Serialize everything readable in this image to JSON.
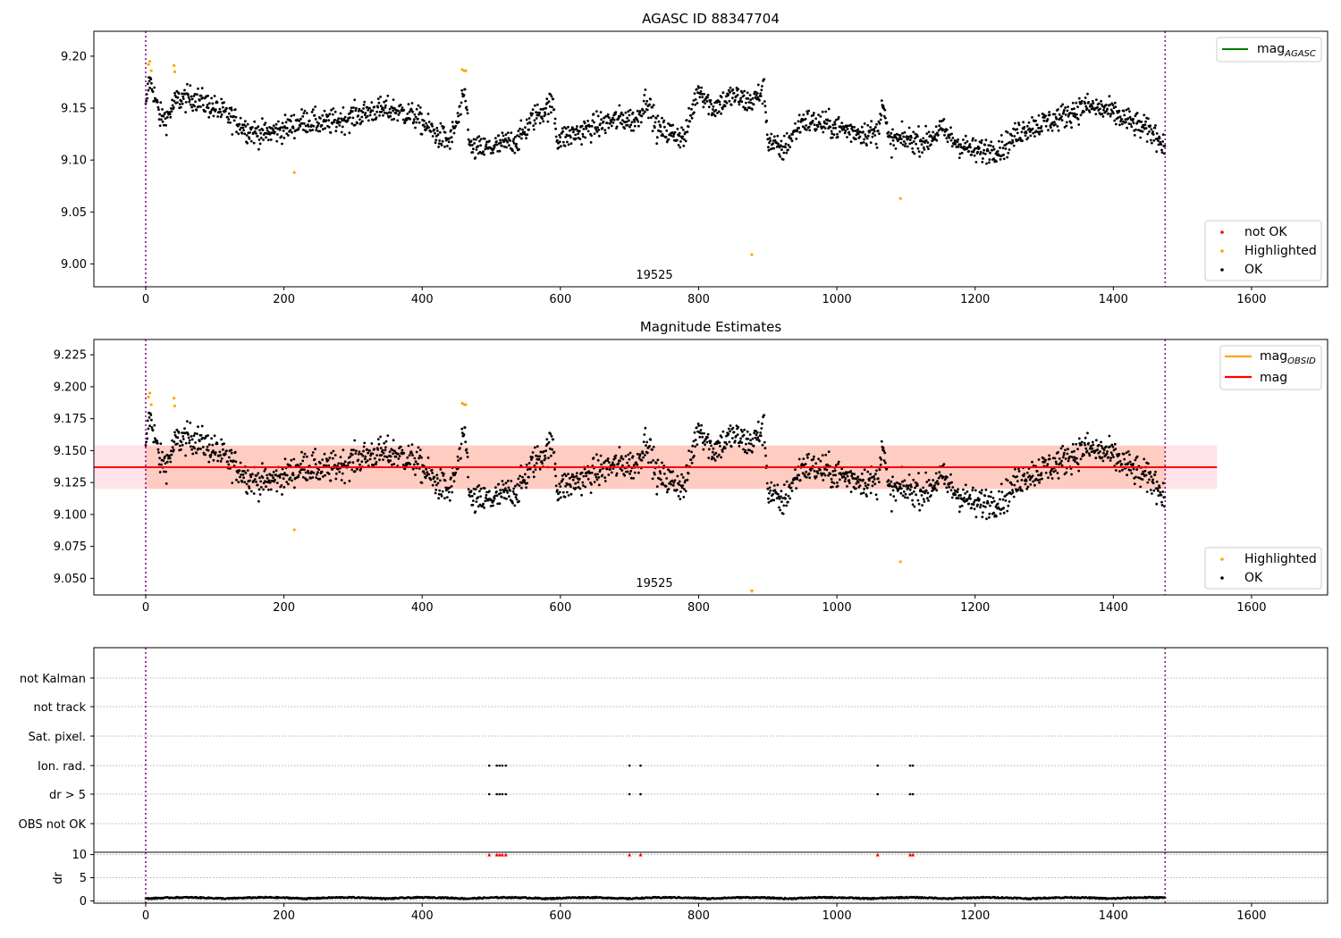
{
  "chart_data": [
    {
      "type": "scatter",
      "title": "AGASC ID 88347704",
      "xlim": [
        -75,
        1710
      ],
      "ylim": [
        8.978,
        9.224
      ],
      "xticks": [
        0,
        200,
        400,
        600,
        800,
        1000,
        1200,
        1400,
        1600
      ],
      "yticks": [
        9.0,
        9.05,
        9.1,
        9.15,
        9.2
      ],
      "ytick_labels": [
        "9.00",
        "9.05",
        "9.10",
        "9.15",
        "9.20"
      ],
      "vlines": [
        0,
        1475
      ],
      "obsid_label": "19525",
      "obsid_x": 732,
      "legend_lines": [
        {
          "label": "mag",
          "sub": "AGASC",
          "color": "#008000"
        }
      ],
      "legend_points": [
        {
          "label": "not OK",
          "color": "#ff0000"
        },
        {
          "label": "Highlighted",
          "color": "#ffa500"
        },
        {
          "label": "OK",
          "color": "#000000"
        }
      ],
      "highlighted": [
        [
          4,
          9.192
        ],
        [
          6,
          9.195
        ],
        [
          8,
          9.186
        ],
        [
          41,
          9.191
        ],
        [
          42,
          9.185
        ],
        [
          215,
          9.088
        ],
        [
          458,
          9.187
        ],
        [
          461,
          9.186
        ],
        [
          463,
          9.186
        ],
        [
          877,
          9.009
        ],
        [
          1092,
          9.063
        ]
      ],
      "ok_trend": [
        [
          0,
          9.148
        ],
        [
          5,
          9.178
        ],
        [
          12,
          9.165
        ],
        [
          20,
          9.142
        ],
        [
          30,
          9.14
        ],
        [
          45,
          9.158
        ],
        [
          70,
          9.16
        ],
        [
          100,
          9.15
        ],
        [
          130,
          9.138
        ],
        [
          150,
          9.128
        ],
        [
          170,
          9.125
        ],
        [
          200,
          9.13
        ],
        [
          230,
          9.138
        ],
        [
          260,
          9.135
        ],
        [
          290,
          9.14
        ],
        [
          330,
          9.148
        ],
        [
          360,
          9.148
        ],
        [
          390,
          9.142
        ],
        [
          420,
          9.125
        ],
        [
          440,
          9.118
        ],
        [
          455,
          9.145
        ],
        [
          462,
          9.165
        ],
        [
          470,
          9.11
        ],
        [
          500,
          9.112
        ],
        [
          540,
          9.12
        ],
        [
          560,
          9.14
        ],
        [
          590,
          9.155
        ],
        [
          595,
          9.12
        ],
        [
          620,
          9.125
        ],
        [
          660,
          9.135
        ],
        [
          690,
          9.14
        ],
        [
          710,
          9.138
        ],
        [
          725,
          9.16
        ],
        [
          740,
          9.13
        ],
        [
          780,
          9.122
        ],
        [
          800,
          9.17
        ],
        [
          820,
          9.15
        ],
        [
          850,
          9.162
        ],
        [
          875,
          9.155
        ],
        [
          895,
          9.168
        ],
        [
          900,
          9.12
        ],
        [
          920,
          9.108
        ],
        [
          950,
          9.138
        ],
        [
          980,
          9.135
        ],
        [
          1020,
          9.128
        ],
        [
          1060,
          9.125
        ],
        [
          1065,
          9.16
        ],
        [
          1075,
          9.118
        ],
        [
          1100,
          9.12
        ],
        [
          1130,
          9.118
        ],
        [
          1150,
          9.13
        ],
        [
          1170,
          9.118
        ],
        [
          1200,
          9.108
        ],
        [
          1240,
          9.112
        ],
        [
          1270,
          9.13
        ],
        [
          1320,
          9.14
        ],
        [
          1360,
          9.152
        ],
        [
          1390,
          9.148
        ],
        [
          1430,
          9.135
        ],
        [
          1460,
          9.125
        ],
        [
          1475,
          9.115
        ]
      ]
    },
    {
      "type": "scatter",
      "title": "Magnitude Estimates",
      "xlim": [
        -75,
        1710
      ],
      "ylim": [
        9.037,
        9.237
      ],
      "xticks": [
        0,
        200,
        400,
        600,
        800,
        1000,
        1200,
        1400,
        1600
      ],
      "yticks": [
        9.05,
        9.075,
        9.1,
        9.125,
        9.15,
        9.175,
        9.2,
        9.225
      ],
      "ytick_labels": [
        "9.050",
        "9.075",
        "9.100",
        "9.125",
        "9.150",
        "9.175",
        "9.200",
        "9.225"
      ],
      "vlines": [
        0,
        1475
      ],
      "obsid_label": "19525",
      "obsid_x": 732,
      "mag_line": {
        "value": 9.137,
        "x": [
          -75,
          1550
        ],
        "color": "#ff0000"
      },
      "mag_band": {
        "low": 9.12,
        "high": 9.154,
        "x": [
          -75,
          1550
        ]
      },
      "legend_lines": [
        {
          "label": "mag",
          "sub": "OBSID",
          "color": "#ffa500"
        },
        {
          "label": "mag",
          "sub": "",
          "color": "#ff0000"
        }
      ],
      "legend_points": [
        {
          "label": "Highlighted",
          "color": "#ffa500"
        },
        {
          "label": "OK",
          "color": "#000000"
        }
      ],
      "highlighted": [
        [
          4,
          9.192
        ],
        [
          6,
          9.195
        ],
        [
          8,
          9.186
        ],
        [
          41,
          9.191
        ],
        [
          42,
          9.185
        ],
        [
          215,
          9.088
        ],
        [
          458,
          9.187
        ],
        [
          461,
          9.186
        ],
        [
          463,
          9.186
        ],
        [
          1092,
          9.063
        ]
      ],
      "clipped_low": [
        [
          877,
          9.039
        ]
      ]
    },
    {
      "type": "scatter",
      "title": "",
      "xlim": [
        -75,
        1710
      ],
      "xticks": [
        0,
        200,
        400,
        600,
        800,
        1000,
        1200,
        1400,
        1600
      ],
      "vlines": [
        0,
        1475
      ],
      "categories": [
        "not Kalman",
        "not track",
        "Sat. pixel.",
        "Ion. rad.",
        "dr > 5",
        "OBS not OK"
      ],
      "flag_points": {
        "Ion. rad.": [
          497,
          508,
          512,
          516,
          521,
          700,
          716,
          1059,
          1106,
          1110
        ],
        "dr > 5": [
          497,
          508,
          512,
          516,
          521,
          700,
          716,
          1059,
          1106,
          1110
        ]
      },
      "dr": {
        "ylabel": "dr",
        "ylim": [
          -0.5,
          10.5
        ],
        "yticks": [
          0,
          5,
          10
        ],
        "clipped_high_x": [
          497,
          508,
          512,
          516,
          521,
          700,
          716,
          1059,
          1106,
          1110
        ]
      }
    }
  ]
}
